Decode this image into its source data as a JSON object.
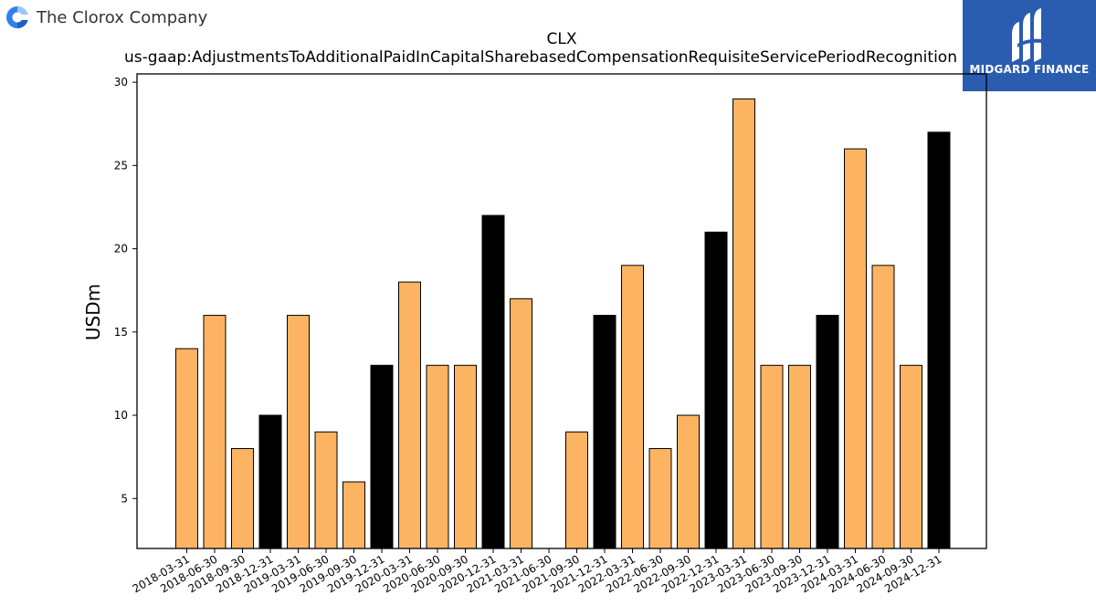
{
  "header": {
    "company_name": "The Clorox Company",
    "logo_icon": "clorox-logo-icon"
  },
  "brand": {
    "name": "MIDGARD FINANCE",
    "color": "#2a5cb0",
    "logo_icon": "midgard-logo-icon"
  },
  "chart_data": {
    "type": "bar",
    "title": "CLX",
    "subtitle": "us-gaap:AdjustmentsToAdditionalPaidInCapitalSharebasedCompensationRequisiteServicePeriodRecognition",
    "xlabel": "",
    "ylabel": "USDm",
    "ylim": [
      2,
      30.5
    ],
    "yticks": [
      5,
      10,
      15,
      20,
      25,
      30
    ],
    "grid": false,
    "colors": {
      "quarter": "#fdb462",
      "year_end": "#000000",
      "edge": "#000000"
    },
    "categories": [
      "2018-03-31",
      "2018-06-30",
      "2018-09-30",
      "2018-12-31",
      "2019-03-31",
      "2019-06-30",
      "2019-09-30",
      "2019-12-31",
      "2020-03-31",
      "2020-06-30",
      "2020-09-30",
      "2020-12-31",
      "2021-03-31",
      "2021-06-30",
      "2021-09-30",
      "2021-12-31",
      "2022-03-31",
      "2022-06-30",
      "2022-09-30",
      "2022-12-31",
      "2023-03-31",
      "2023-06-30",
      "2023-09-30",
      "2023-12-31",
      "2024-03-31",
      "2024-06-30",
      "2024-09-30",
      "2024-12-31"
    ],
    "values": [
      14,
      16,
      8,
      10,
      16,
      9,
      6,
      13,
      18,
      13,
      13,
      22,
      17,
      null,
      9,
      16,
      19,
      8,
      10,
      21,
      29,
      13,
      13,
      16,
      26,
      19,
      13,
      27
    ],
    "year_end": [
      false,
      false,
      false,
      true,
      false,
      false,
      false,
      true,
      false,
      false,
      false,
      true,
      false,
      false,
      false,
      true,
      false,
      false,
      false,
      true,
      false,
      false,
      false,
      true,
      false,
      false,
      false,
      true
    ]
  }
}
